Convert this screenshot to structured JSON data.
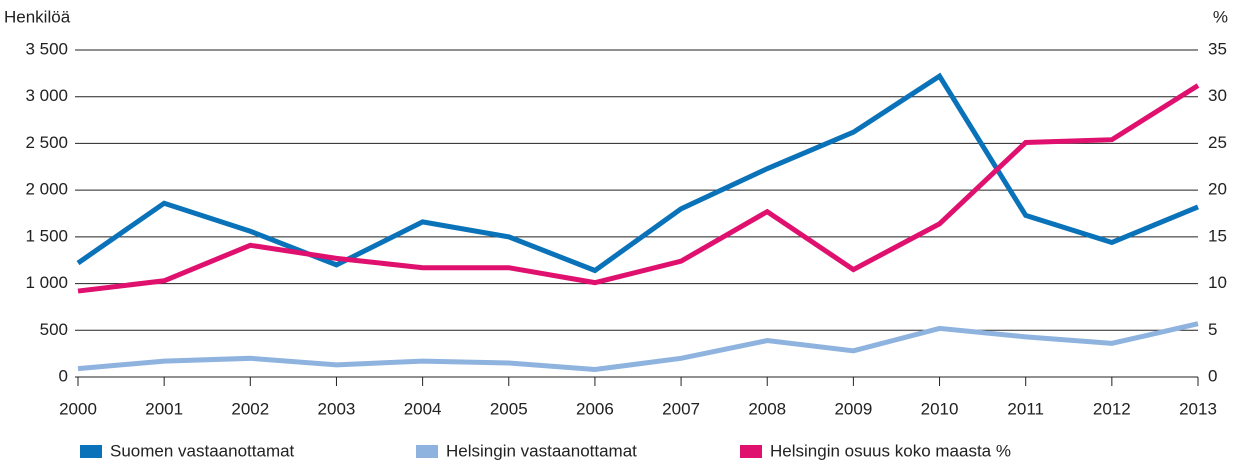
{
  "chart_data": {
    "type": "line",
    "y_label": "Henkilöä",
    "y2_label": "%",
    "x": [
      2000,
      2001,
      2002,
      2003,
      2004,
      2005,
      2006,
      2007,
      2008,
      2009,
      2010,
      2011,
      2012,
      2013
    ],
    "xlim": [
      2000,
      2013
    ],
    "xticks": [
      2000,
      2001,
      2002,
      2003,
      2004,
      2005,
      2006,
      2007,
      2008,
      2009,
      2010,
      2011,
      2012,
      2013
    ],
    "ylim": [
      0,
      3500
    ],
    "yticks": [
      0,
      {
        "value": 500,
        "label": "500"
      },
      {
        "value": 1000,
        "label": "1 000"
      },
      {
        "value": 1500,
        "label": "1 500"
      },
      {
        "value": 2000,
        "label": "2 000"
      },
      {
        "value": 2500,
        "label": "2 500"
      },
      {
        "value": 3000,
        "label": "3 000"
      },
      {
        "value": 3500,
        "label": "3 500"
      }
    ],
    "y2lim": [
      0,
      35
    ],
    "y2ticks": [
      0,
      5,
      10,
      15,
      20,
      25,
      30,
      35
    ],
    "grid": true,
    "legend": "bottom",
    "series": [
      {
        "name": "Suomen vastaanottamat",
        "color": "#0a72b8",
        "values": [
          1220,
          1860,
          1560,
          1200,
          1660,
          1500,
          1140,
          1800,
          2230,
          2620,
          3220,
          1730,
          1440,
          1820
        ]
      },
      {
        "name": "Helsingin vastaanottamat",
        "color": "#8fb3df",
        "values": [
          90,
          170,
          200,
          130,
          170,
          150,
          80,
          200,
          390,
          280,
          520,
          430,
          360,
          570
        ]
      },
      {
        "name": "Helsingin osuus koko maasta %",
        "color": "#e0106f",
        "axis": "y2",
        "values": [
          9.2,
          10.3,
          14.1,
          12.7,
          11.7,
          11.7,
          10.1,
          12.4,
          17.7,
          11.5,
          16.4,
          25.1,
          25.4,
          31.2
        ]
      }
    ]
  }
}
